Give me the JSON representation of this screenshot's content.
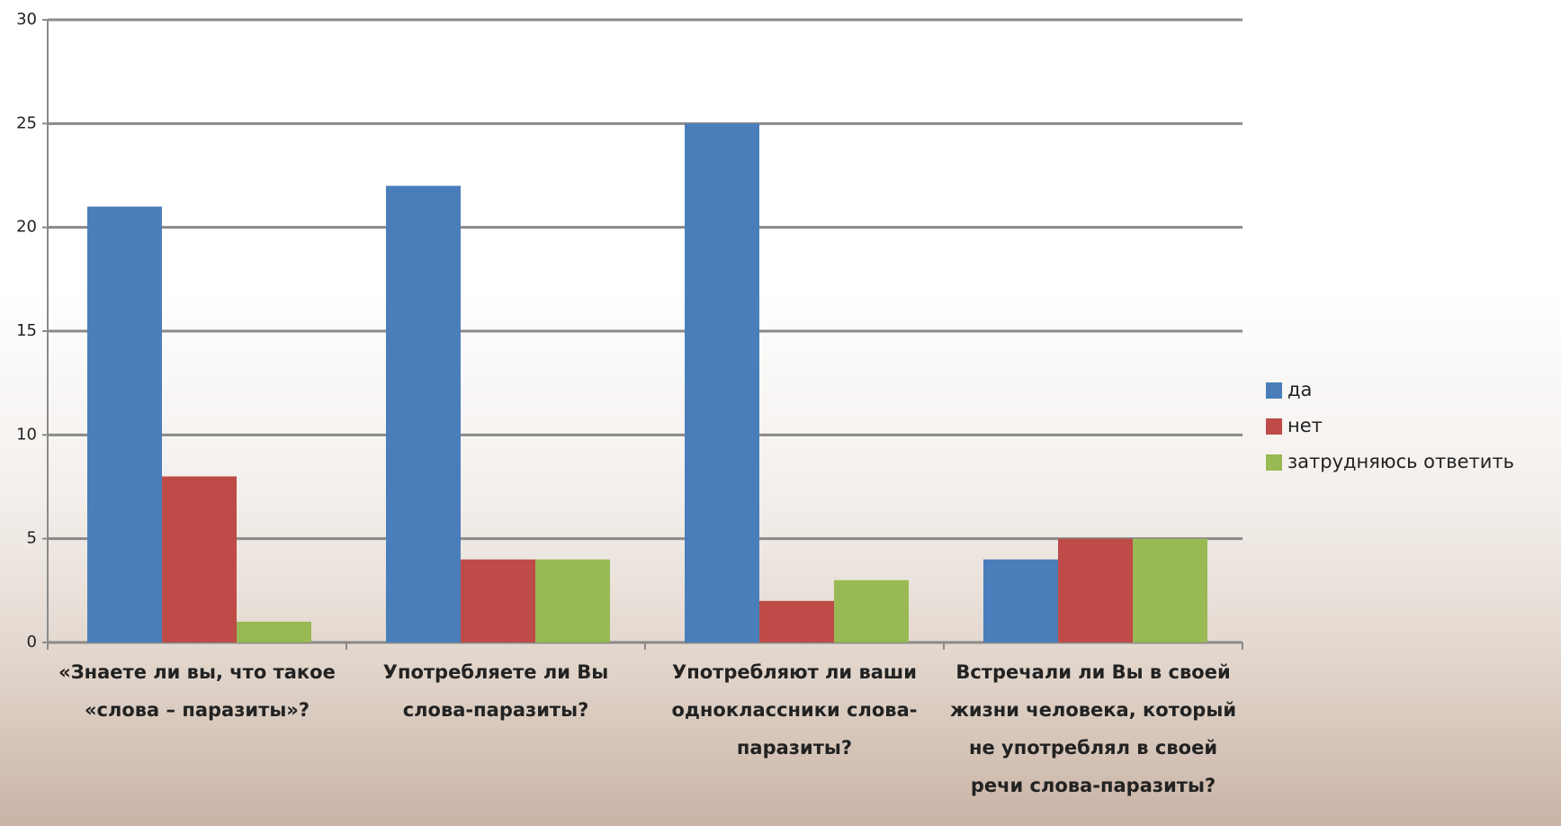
{
  "chart_data": {
    "type": "bar",
    "categories": [
      "«Знаете ли вы, что такое «слова – паразиты»?",
      "Употребляете ли Вы слова-паразиты?",
      "Употребляют ли ваши одноклассники слова-паразиты?",
      "Встречали ли Вы в своей жизни человека, который не употреблял в своей речи слова-паразиты?"
    ],
    "series": [
      {
        "name": "да",
        "color": "#4a7ebb",
        "values": [
          21,
          22,
          25,
          4
        ]
      },
      {
        "name": "нет",
        "color": "#be4b48",
        "values": [
          8,
          4,
          2,
          5
        ]
      },
      {
        "name": "затрудняюсь ответить",
        "color": "#98b954",
        "values": [
          1,
          4,
          3,
          5
        ]
      }
    ],
    "ylim": [
      0,
      30
    ],
    "yticks": [
      0,
      5,
      10,
      15,
      20,
      25,
      30
    ],
    "grid": true,
    "legend": "right"
  }
}
